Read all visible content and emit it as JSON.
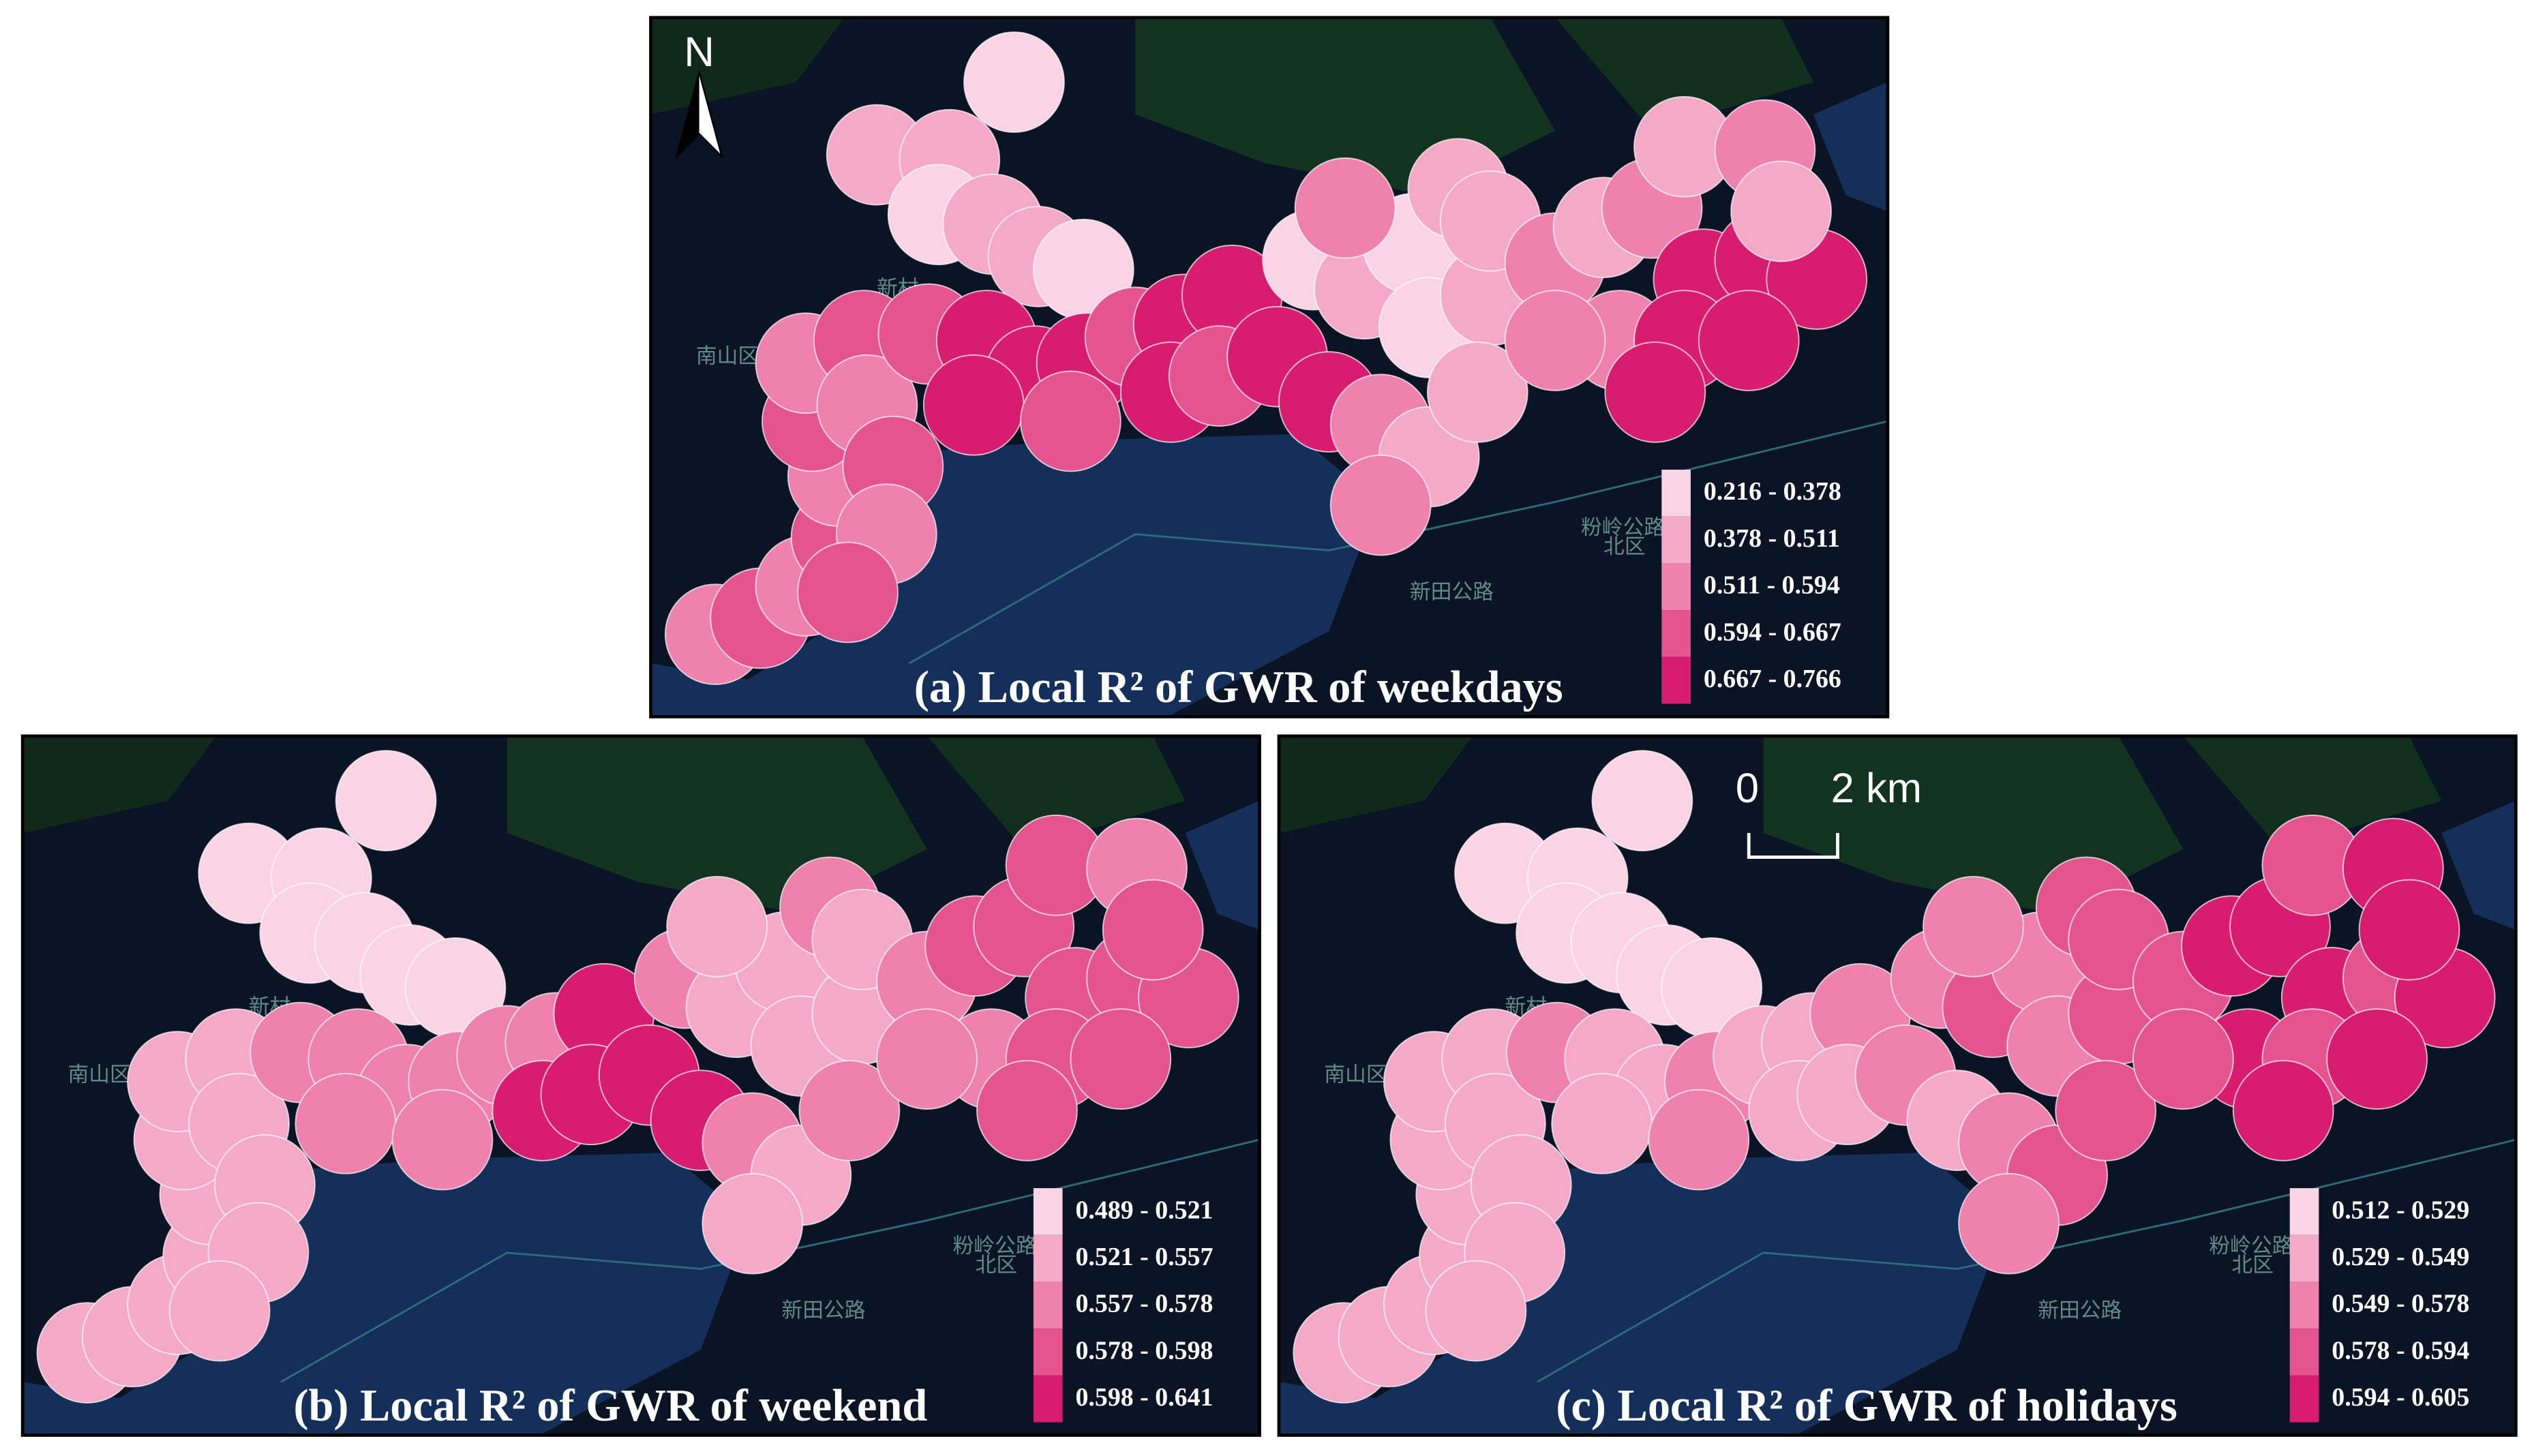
{
  "north_label": "N",
  "scale_bar": {
    "start": "0",
    "end": "2 km"
  },
  "basemap_labels": [
    "南山区",
    "北区",
    "粉岭公路",
    "新田公路",
    "新村"
  ],
  "panels": [
    {
      "title": "(a) Local R² of GWR of weekdays",
      "legend": [
        {
          "label": "0.216 - 0.378",
          "color": "#fbd4e4"
        },
        {
          "label": "0.378 - 0.511",
          "color": "#f4a9c6"
        },
        {
          "label": "0.511 - 0.594",
          "color": "#ee82ad"
        },
        {
          "label": "0.594 - 0.667",
          "color": "#e45590"
        },
        {
          "label": "0.667 - 0.766",
          "color": "#d81c6f"
        }
      ]
    },
    {
      "title": "(b) Local R² of GWR of weekend",
      "legend": [
        {
          "label": "0.489 - 0.521",
          "color": "#fbd4e4"
        },
        {
          "label": "0.521 - 0.557",
          "color": "#f4a9c6"
        },
        {
          "label": "0.557 - 0.578",
          "color": "#ee82ad"
        },
        {
          "label": "0.578 - 0.598",
          "color": "#e45590"
        },
        {
          "label": "0.598 - 0.641",
          "color": "#d81c6f"
        }
      ]
    },
    {
      "title": "(c) Local R² of GWR of holidays",
      "legend": [
        {
          "label": "0.512 - 0.529",
          "color": "#fbd4e4"
        },
        {
          "label": "0.529 - 0.549",
          "color": "#f4a9c6"
        },
        {
          "label": "0.549 - 0.578",
          "color": "#ee82ad"
        },
        {
          "label": "0.578 - 0.594",
          "color": "#e45590"
        },
        {
          "label": "0.594 - 0.605",
          "color": "#d81c6f"
        }
      ]
    }
  ]
}
